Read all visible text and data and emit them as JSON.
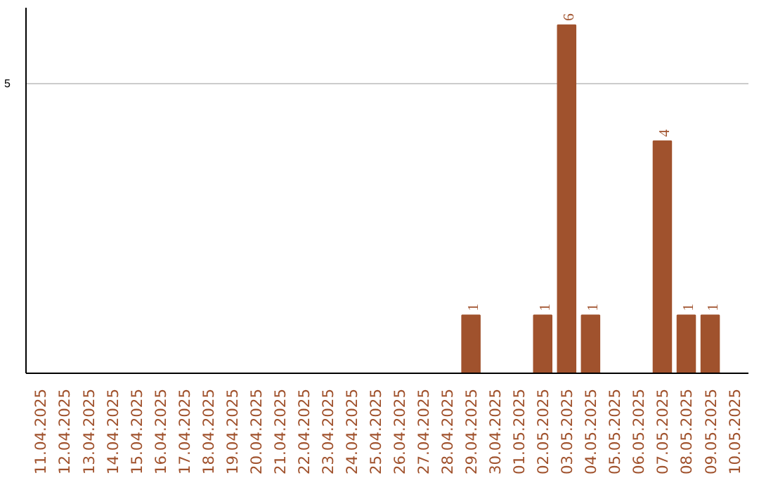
{
  "chart_data": {
    "type": "bar",
    "ylim": [
      0,
      6.3
    ],
    "yticks": [
      5
    ],
    "grid": "y",
    "categories": [
      "11.04.2025",
      "12.04.2025",
      "13.04.2025",
      "14.04.2025",
      "15.04.2025",
      "16.04.2025",
      "17.04.2025",
      "18.04.2025",
      "19.04.2025",
      "20.04.2025",
      "21.04.2025",
      "22.04.2025",
      "23.04.2025",
      "24.04.2025",
      "25.04.2025",
      "26.04.2025",
      "27.04.2025",
      "28.04.2025",
      "29.04.2025",
      "30.04.2025",
      "01.05.2025",
      "02.05.2025",
      "03.05.2025",
      "04.05.2025",
      "05.05.2025",
      "06.05.2025",
      "07.05.2025",
      "08.05.2025",
      "09.05.2025",
      "10.05.2025"
    ],
    "values": [
      null,
      null,
      null,
      null,
      null,
      null,
      null,
      null,
      null,
      null,
      null,
      null,
      null,
      null,
      null,
      null,
      null,
      null,
      1,
      null,
      null,
      1,
      6,
      1,
      null,
      null,
      4,
      1,
      1,
      null
    ],
    "data_labels": true,
    "color": "#a0522d"
  }
}
